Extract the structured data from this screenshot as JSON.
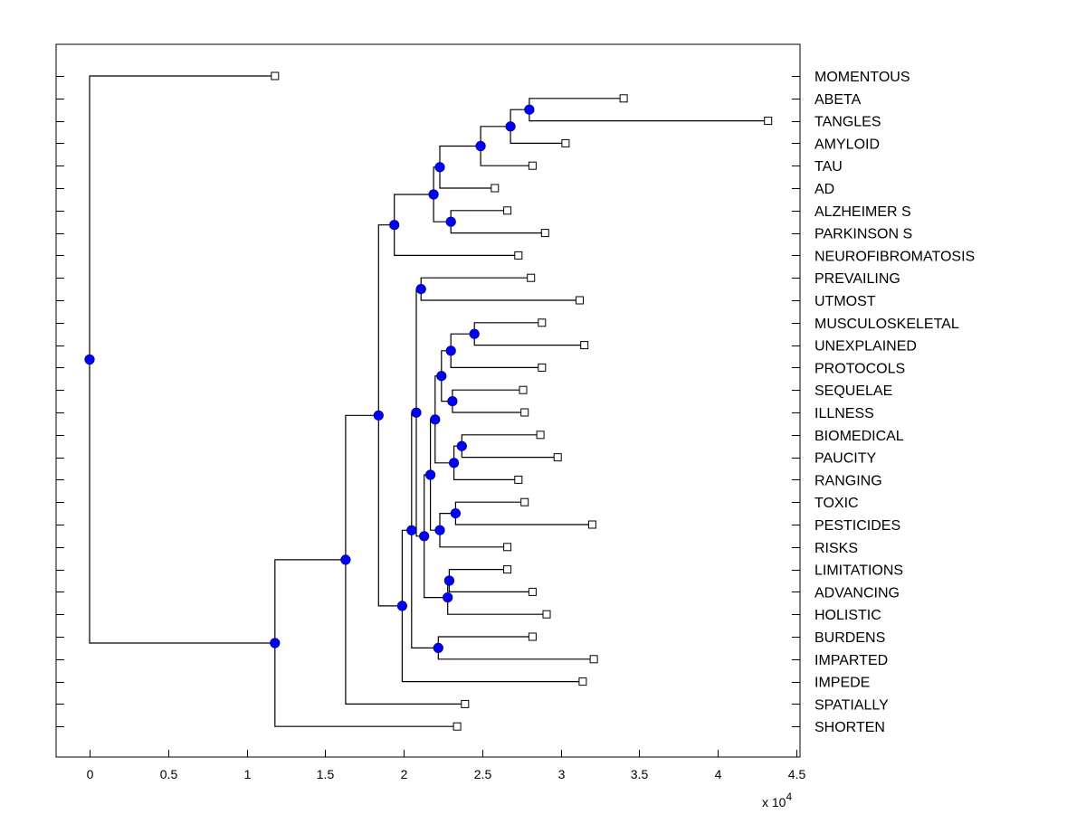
{
  "chart_data": {
    "type": "dendrogram",
    "title": "",
    "xlabel": "",
    "ylabel": "",
    "x_multiplier_label": "x 10",
    "x_multiplier_exponent": "4",
    "xlim": [
      -0.21,
      4.55
    ],
    "xticks": [
      0,
      0.5,
      1,
      1.5,
      2,
      2.5,
      3,
      3.5,
      4,
      4.5
    ],
    "xtick_labels": [
      "0",
      "0.5",
      "1",
      "1.5",
      "2",
      "2.5",
      "3",
      "3.5",
      "4",
      "4.5"
    ],
    "grid": false,
    "colors": {
      "internal_node": "#0000ff",
      "leaf_node": "#ffffff",
      "lines": "#000000"
    },
    "leaves": [
      {
        "label": "MOMENTOUS",
        "x": 1.18
      },
      {
        "label": "ABETA",
        "x": 3.4
      },
      {
        "label": "TANGLES",
        "x": 4.32
      },
      {
        "label": "AMYLOID",
        "x": 3.03
      },
      {
        "label": "TAU",
        "x": 2.82
      },
      {
        "label": "AD",
        "x": 2.58
      },
      {
        "label": "ALZHEIMER S",
        "x": 2.66
      },
      {
        "label": "PARKINSON S",
        "x": 2.9
      },
      {
        "label": "NEUROFIBROMATOSIS",
        "x": 2.73
      },
      {
        "label": "PREVAILING",
        "x": 2.81
      },
      {
        "label": "UTMOST",
        "x": 3.12
      },
      {
        "label": "MUSCULOSKELETAL",
        "x": 2.88
      },
      {
        "label": "UNEXPLAINED",
        "x": 3.15
      },
      {
        "label": "PROTOCOLS",
        "x": 2.88
      },
      {
        "label": "SEQUELAE",
        "x": 2.76
      },
      {
        "label": "ILLNESS",
        "x": 2.77
      },
      {
        "label": "BIOMEDICAL",
        "x": 2.87
      },
      {
        "label": "PAUCITY",
        "x": 2.98
      },
      {
        "label": "RANGING",
        "x": 2.73
      },
      {
        "label": "TOXIC",
        "x": 2.77
      },
      {
        "label": "PESTICIDES",
        "x": 3.2
      },
      {
        "label": "RISKS",
        "x": 2.66
      },
      {
        "label": "LIMITATIONS",
        "x": 2.66
      },
      {
        "label": "ADVANCING",
        "x": 2.82
      },
      {
        "label": "HOLISTIC",
        "x": 2.91
      },
      {
        "label": "BURDENS",
        "x": 2.82
      },
      {
        "label": "IMPARTED",
        "x": 3.21
      },
      {
        "label": "IMPEDE",
        "x": 3.14
      },
      {
        "label": "SPATIALLY",
        "x": 2.39
      },
      {
        "label": "SHORTEN",
        "x": 2.34
      }
    ],
    "internal_nodes": [
      {
        "id": "n_ab_tg",
        "x": 2.8,
        "children": [
          "L1",
          "L2"
        ]
      },
      {
        "id": "n_amy",
        "x": 2.68,
        "children": [
          "n_ab_tg",
          "L3"
        ]
      },
      {
        "id": "n_tau",
        "x": 2.49,
        "children": [
          "n_amy",
          "L4"
        ]
      },
      {
        "id": "n_ad",
        "x": 2.23,
        "children": [
          "n_tau",
          "L5"
        ]
      },
      {
        "id": "n_alz_park",
        "x": 2.3,
        "children": [
          "L6",
          "L7"
        ]
      },
      {
        "id": "n_adgrp",
        "x": 2.19,
        "children": [
          "n_ad",
          "n_alz_park"
        ]
      },
      {
        "id": "n_neuro",
        "x": 1.94,
        "children": [
          "n_adgrp",
          "L8"
        ]
      },
      {
        "id": "n_prev_utm",
        "x": 2.11,
        "children": [
          "L9",
          "L10"
        ]
      },
      {
        "id": "n_musc_unex",
        "x": 2.45,
        "children": [
          "L11",
          "L12"
        ]
      },
      {
        "id": "n_prot",
        "x": 2.3,
        "children": [
          "n_musc_unex",
          "L13"
        ]
      },
      {
        "id": "n_seq_ill",
        "x": 2.31,
        "children": [
          "L14",
          "L15"
        ]
      },
      {
        "id": "n_illgrp",
        "x": 2.24,
        "children": [
          "n_prot",
          "n_seq_ill"
        ]
      },
      {
        "id": "n_bio_pau",
        "x": 2.37,
        "children": [
          "L16",
          "L17"
        ]
      },
      {
        "id": "n_rang",
        "x": 2.32,
        "children": [
          "n_bio_pau",
          "L18"
        ]
      },
      {
        "id": "n_bioblk",
        "x": 2.2,
        "children": [
          "n_illgrp",
          "n_rang"
        ]
      },
      {
        "id": "n_tox_pest",
        "x": 2.33,
        "children": [
          "L19",
          "L20"
        ]
      },
      {
        "id": "n_risks",
        "x": 2.23,
        "children": [
          "n_tox_pest",
          "L21"
        ]
      },
      {
        "id": "n_mid",
        "x": 2.17,
        "children": [
          "n_bioblk",
          "n_risks"
        ]
      },
      {
        "id": "n_lim_adv",
        "x": 2.29,
        "children": [
          "L22",
          "L23"
        ]
      },
      {
        "id": "n_hol",
        "x": 2.28,
        "children": [
          "n_lim_adv",
          "L24"
        ]
      },
      {
        "id": "n_midhol",
        "x": 2.13,
        "children": [
          "n_mid",
          "n_hol"
        ]
      },
      {
        "id": "n_prevblk",
        "x": 2.08,
        "children": [
          "n_prev_utm",
          "n_midhol"
        ]
      },
      {
        "id": "n_bur_imp",
        "x": 2.22,
        "children": [
          "L25",
          "L26"
        ]
      },
      {
        "id": "n_burblk",
        "x": 2.05,
        "children": [
          "n_prevblk",
          "n_bur_imp"
        ]
      },
      {
        "id": "n_impede",
        "x": 1.99,
        "children": [
          "n_burblk",
          "L27"
        ]
      },
      {
        "id": "n_big",
        "x": 1.84,
        "children": [
          "n_neuro",
          "n_impede"
        ]
      },
      {
        "id": "n_spat",
        "x": 1.63,
        "children": [
          "n_big",
          "L28"
        ]
      },
      {
        "id": "n_short",
        "x": 1.18,
        "children": [
          "n_spat",
          "L29"
        ]
      },
      {
        "id": "root",
        "x": 0.0,
        "children": [
          "L0",
          "n_short"
        ]
      }
    ]
  }
}
